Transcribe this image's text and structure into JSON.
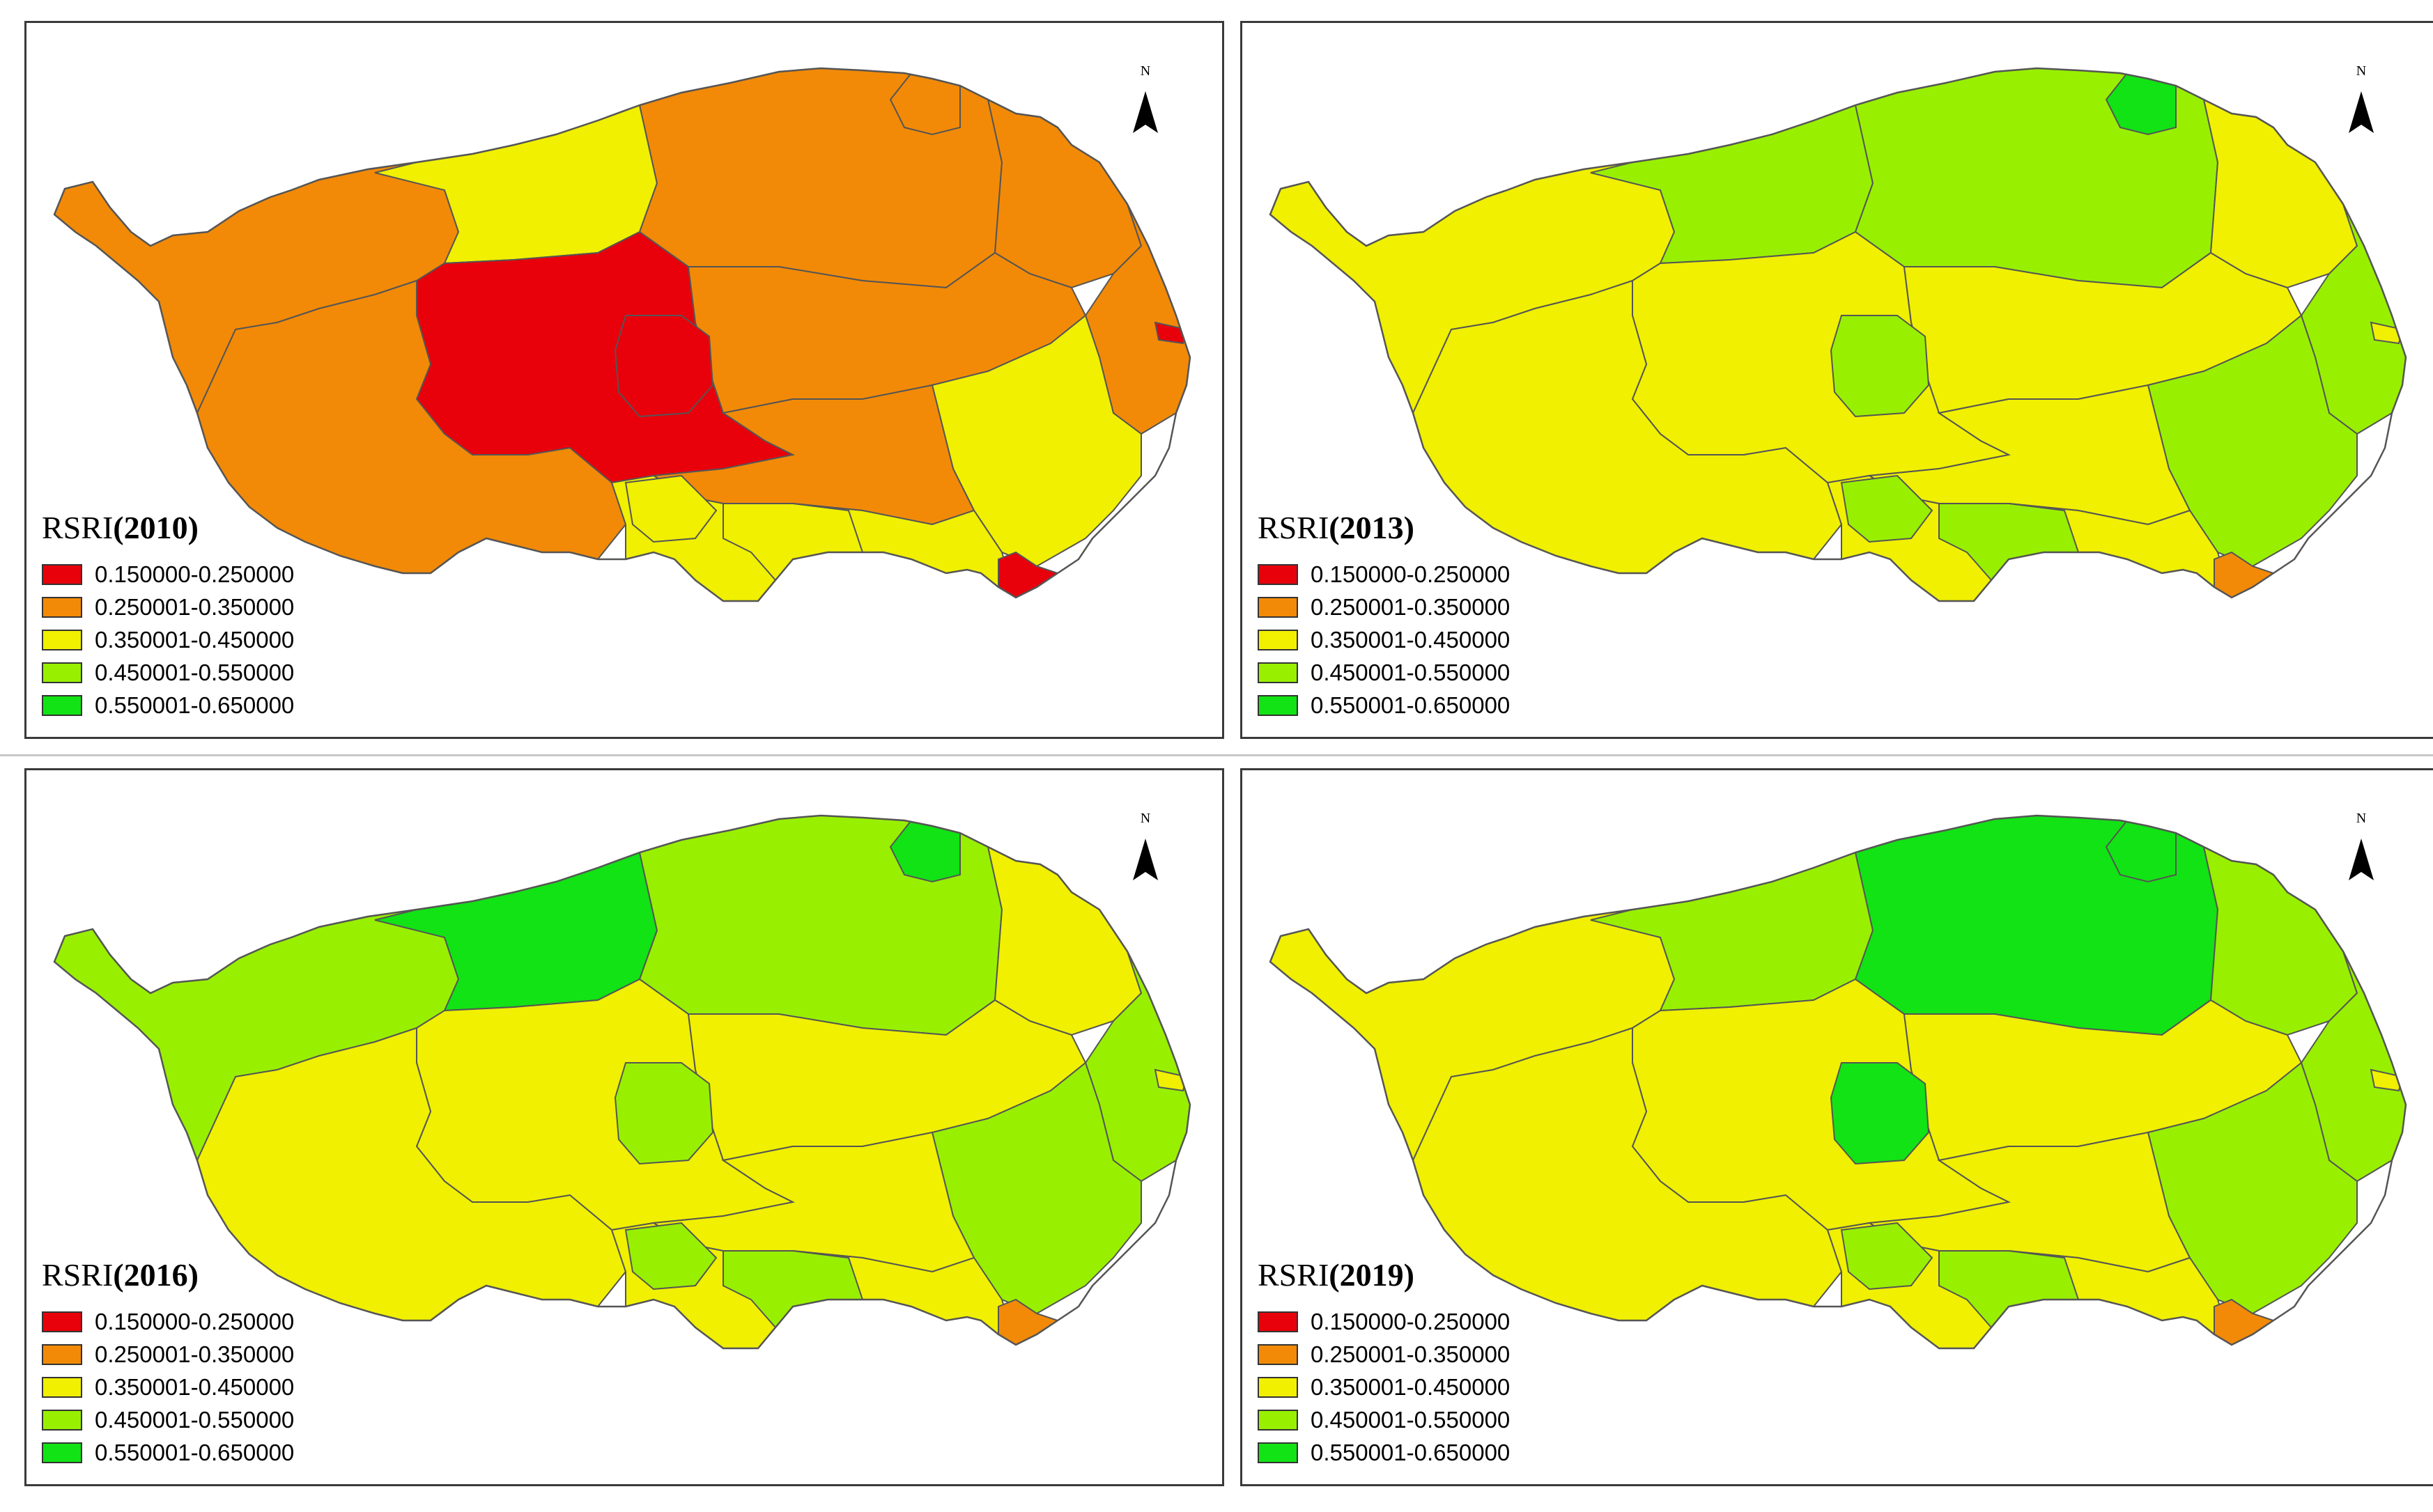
{
  "map_title_prefix": "RSRI",
  "panels": [
    {
      "year": "(2010)"
    },
    {
      "year": "(2013)"
    },
    {
      "year": "(2016)"
    },
    {
      "year": "(2019)"
    }
  ],
  "north_label": "N",
  "legend": {
    "classes": [
      {
        "label": "0.150000-0.250000",
        "color": "#e8000b"
      },
      {
        "label": "0.250001-0.350000",
        "color": "#f28a07"
      },
      {
        "label": "0.350001-0.450000",
        "color": "#f0f000"
      },
      {
        "label": "0.450001-0.550000",
        "color": "#98f000"
      },
      {
        "label": "0.550001-0.650000",
        "color": "#12e314"
      }
    ]
  },
  "colors": {
    "red": "#e8000b",
    "orange": "#f28a07",
    "yellow": "#f0f000",
    "lightgreen": "#98f000",
    "green": "#12e314",
    "boundary": "#555555"
  }
}
